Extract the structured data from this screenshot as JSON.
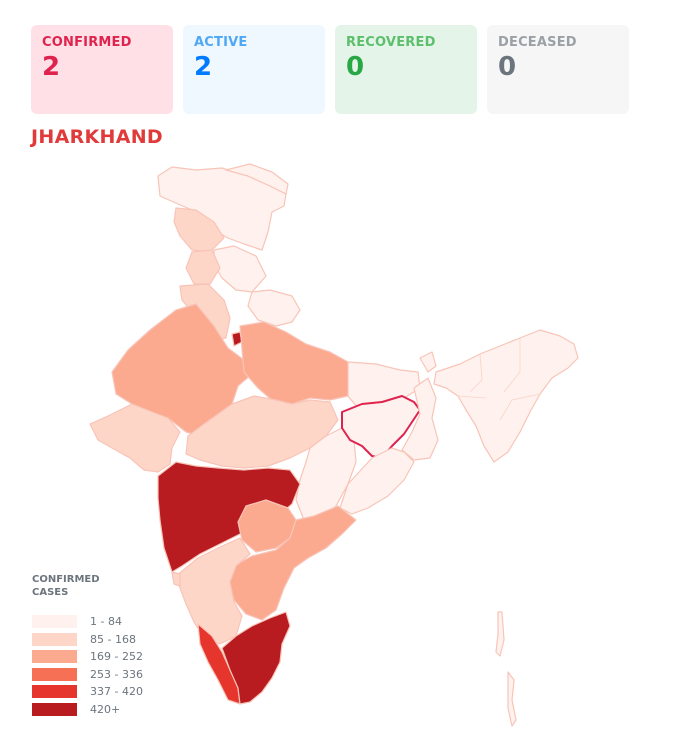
{
  "stats": {
    "confirmed": {
      "label": "CONFIRMED",
      "value": "2"
    },
    "active": {
      "label": "ACTIVE",
      "value": "2"
    },
    "recovered": {
      "label": "RECOVERED",
      "value": "0"
    },
    "deceased": {
      "label": "DECEASED",
      "value": "0"
    }
  },
  "map": {
    "selected_state": "JHARKHAND",
    "highlight_color": "#e0234e"
  },
  "legend": {
    "title": "CONFIRMED CASES",
    "items": [
      {
        "label": "1 - 84",
        "color": "#fff2ee"
      },
      {
        "label": "85 - 168",
        "color": "#fdd6c8"
      },
      {
        "label": "169 - 252",
        "color": "#fbaa8f"
      },
      {
        "label": "253 - 336",
        "color": "#f57054"
      },
      {
        "label": "337 - 420",
        "color": "#e5352c"
      },
      {
        "label": "420+",
        "color": "#b81b20"
      }
    ]
  }
}
